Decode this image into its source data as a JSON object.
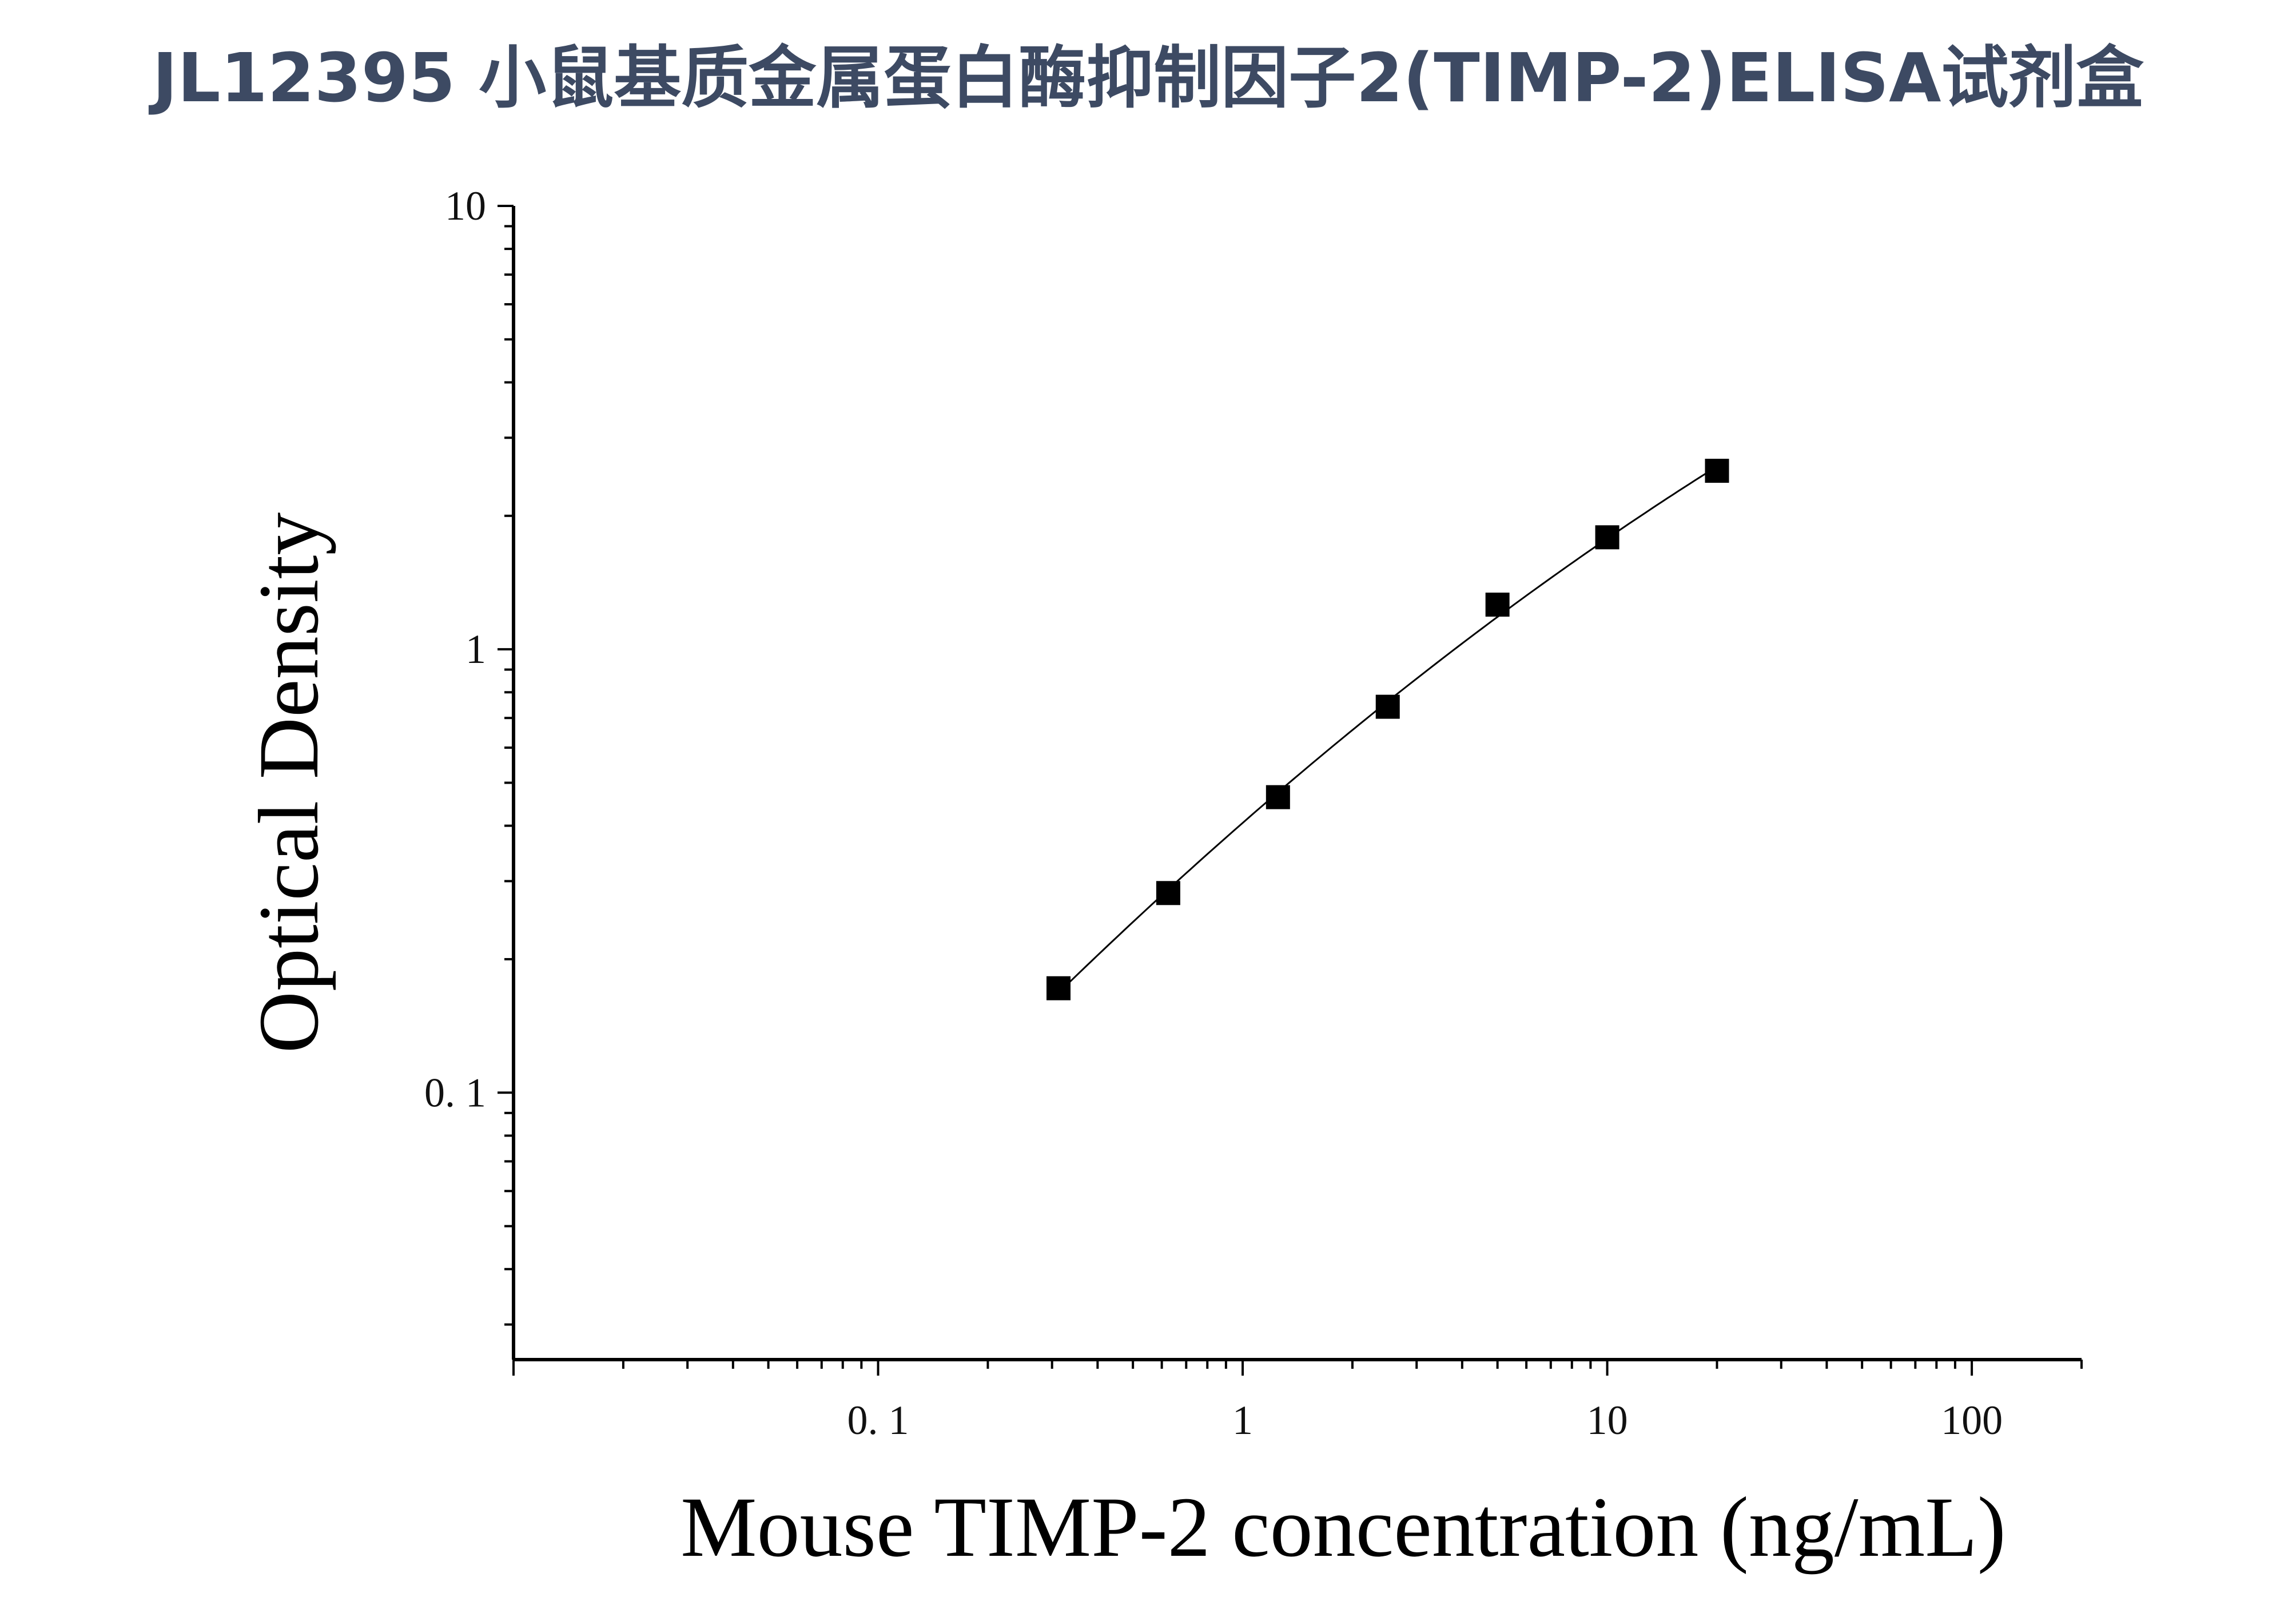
{
  "page": {
    "title": "JL12395 小鼠基质金属蛋白酶抑制因子2(TIMP-2)ELISA试剂盒"
  },
  "chart_data": {
    "type": "line",
    "title": "JL12395 小鼠基质金属蛋白酶抑制因子2(TIMP-2)ELISA试剂盒",
    "xlabel": "Mouse TIMP-2 concentration (ng/mL)",
    "ylabel": "Optical Density",
    "x_scale": "log",
    "y_scale": "log",
    "xlim": [
      0.01,
      200
    ],
    "ylim": [
      0.025,
      10
    ],
    "x_tick_labels": [
      {
        "value": 0.1,
        "label": "0. 1"
      },
      {
        "value": 1,
        "label": "1"
      },
      {
        "value": 10,
        "label": "10"
      },
      {
        "value": 100,
        "label": "100"
      }
    ],
    "y_tick_labels": [
      {
        "value": 0.1,
        "label": "0. 1"
      },
      {
        "value": 1,
        "label": "1"
      },
      {
        "value": 10,
        "label": "10"
      }
    ],
    "grid": false,
    "legend": false,
    "series": [
      {
        "marker": "square",
        "color": "#000000",
        "x": [
          0.3125,
          0.625,
          1.25,
          2.5,
          5,
          10,
          20
        ],
        "y": [
          0.172,
          0.282,
          0.464,
          0.742,
          1.261,
          1.789,
          2.527
        ]
      }
    ]
  }
}
